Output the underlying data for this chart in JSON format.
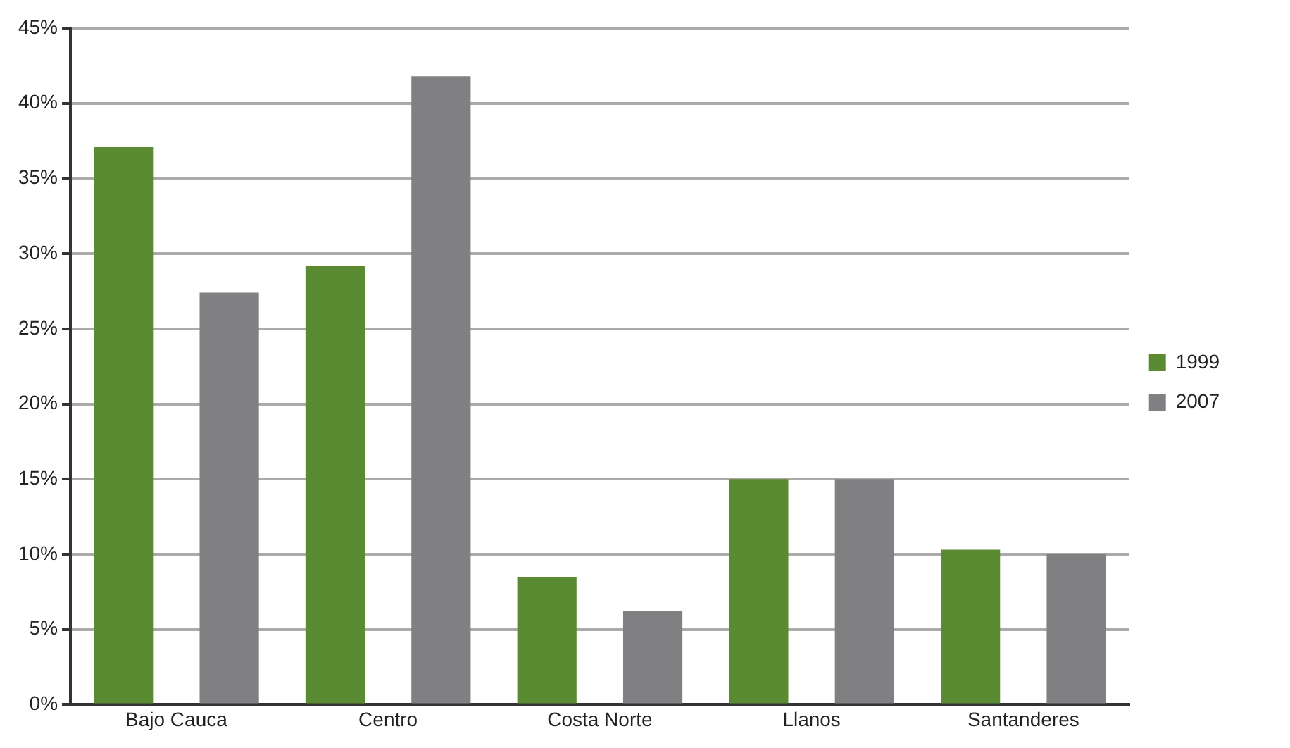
{
  "chart_data": {
    "type": "bar",
    "categories": [
      "Bajo Cauca",
      "Centro",
      "Costa Norte",
      "Llanos",
      "Santanderes"
    ],
    "series": [
      {
        "name": "1999",
        "color": "#5a8a32",
        "values": [
          37.1,
          29.2,
          8.5,
          15,
          10.3
        ]
      },
      {
        "name": "2007",
        "color": "#808083",
        "values": [
          27.4,
          41.8,
          6.2,
          15,
          10.0
        ]
      }
    ],
    "ylim": [
      0,
      45
    ],
    "yticks": [
      {
        "value": 0,
        "label": "0%"
      },
      {
        "value": 5,
        "label": "5%"
      },
      {
        "value": 10,
        "label": "10%"
      },
      {
        "value": 15,
        "label": "15%"
      },
      {
        "value": 20,
        "label": "20%"
      },
      {
        "value": 25,
        "label": "25%"
      },
      {
        "value": 30,
        "label": "30%"
      },
      {
        "value": 35,
        "label": "35%"
      },
      {
        "value": 40,
        "label": "40%"
      },
      {
        "value": 45,
        "label": "45%"
      }
    ],
    "grid": "y",
    "legend": "right"
  }
}
